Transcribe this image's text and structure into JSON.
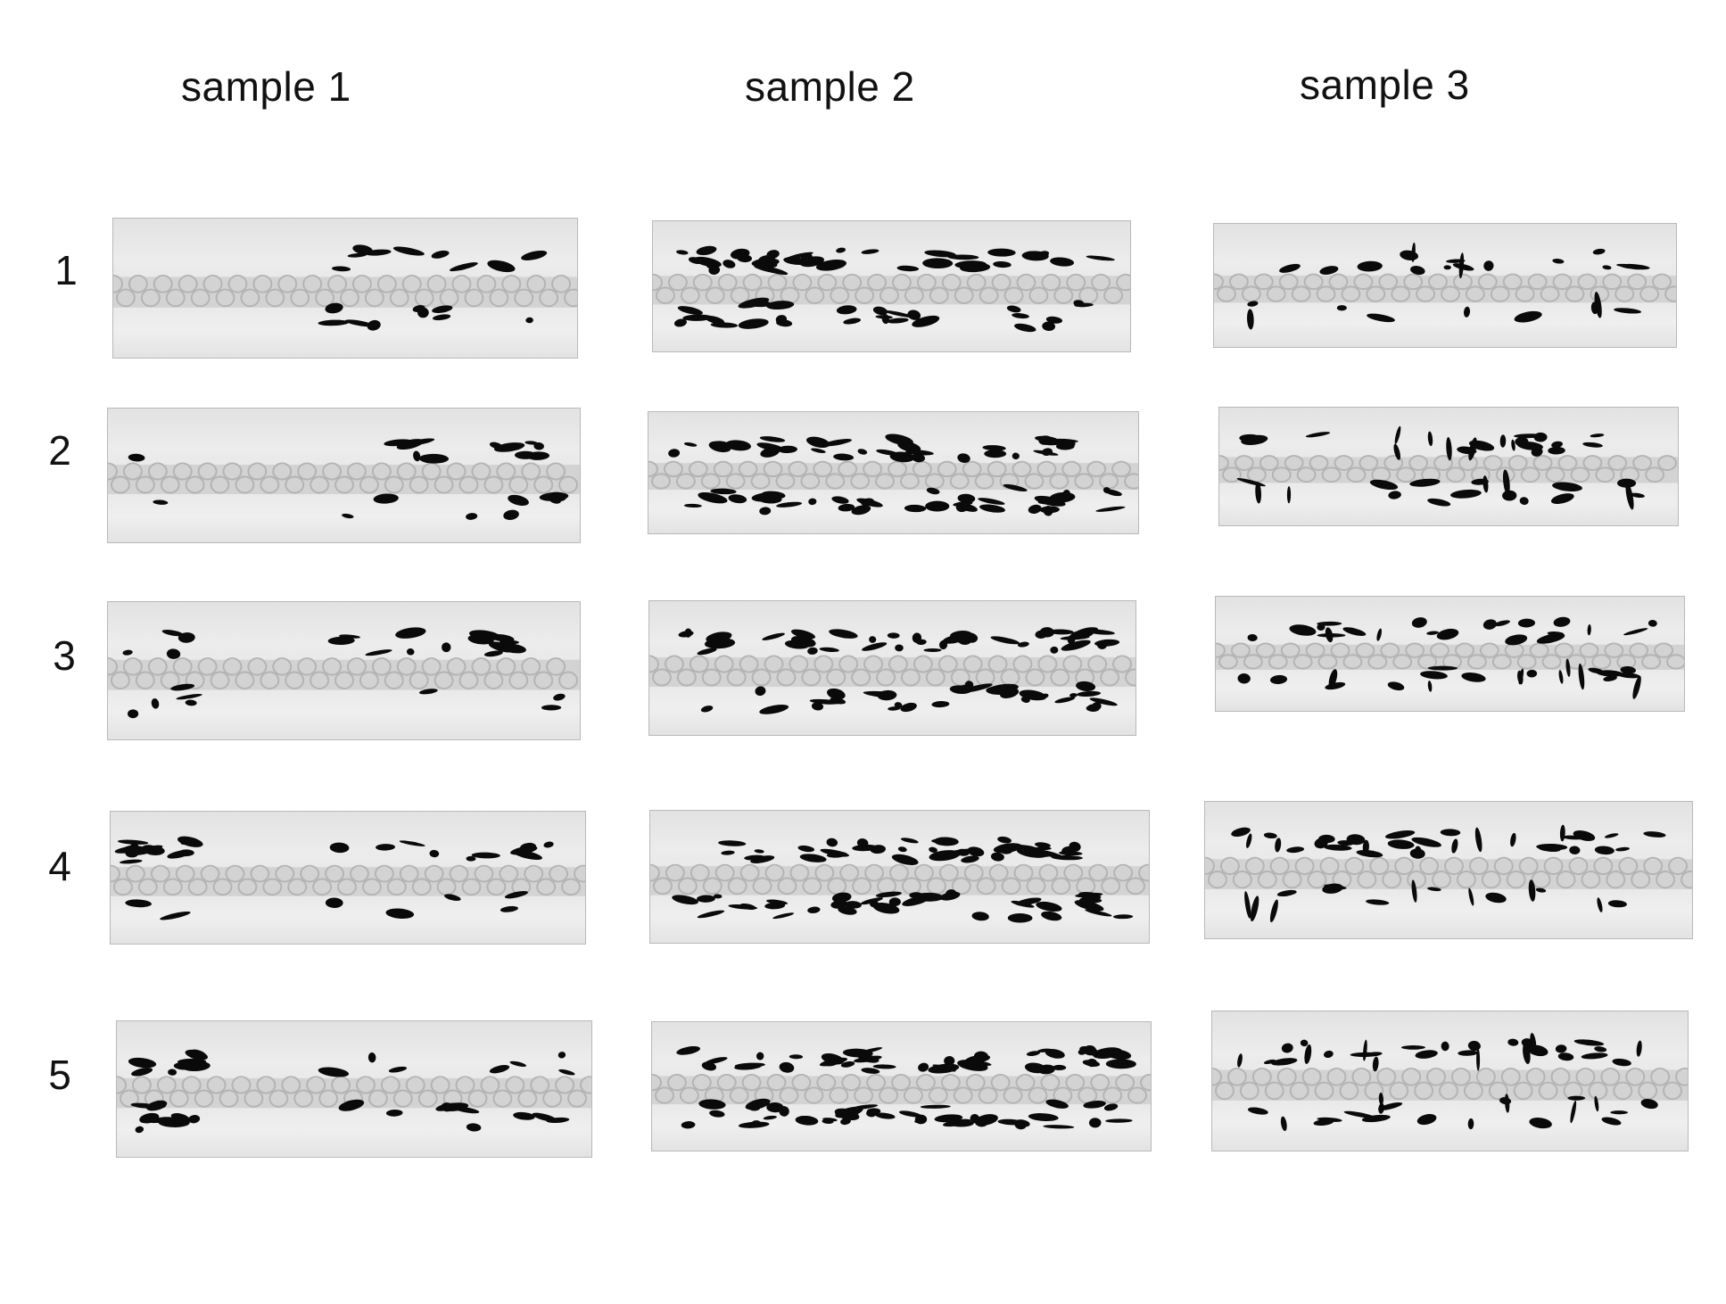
{
  "columns": [
    {
      "label": "sample 1"
    },
    {
      "label": "sample 2"
    },
    {
      "label": "sample 3"
    }
  ],
  "rows": [
    {
      "label": "1"
    },
    {
      "label": "2"
    },
    {
      "label": "3"
    },
    {
      "label": "4"
    },
    {
      "label": "5"
    }
  ],
  "colors": {
    "background": "#ffffff",
    "strip": "#e8e8e8",
    "fiber": "#c8c8c8",
    "defect": "#0a0a0a"
  }
}
